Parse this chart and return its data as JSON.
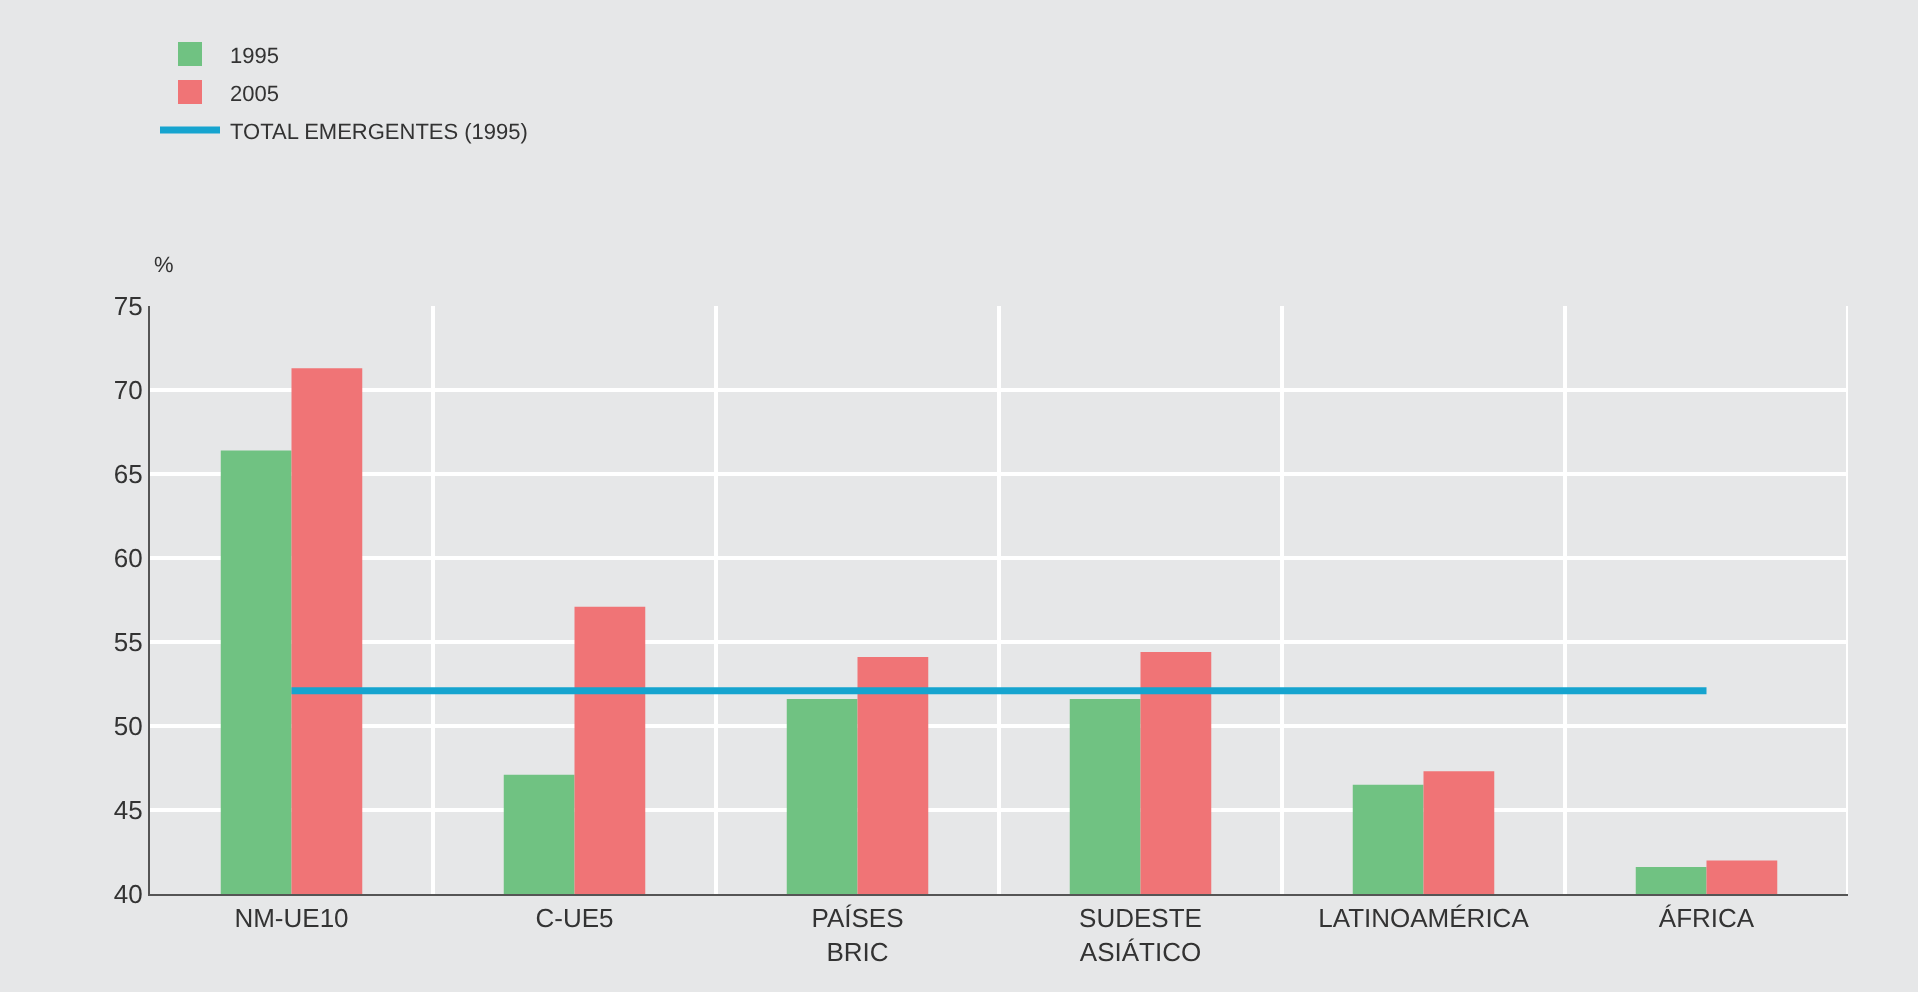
{
  "chart_data": {
    "type": "bar",
    "ylabel": "%",
    "categories": [
      "NM-UE10",
      "C-UE5",
      "PAÍSES\nBRIC",
      "SUDESTE\nASIÁTICO",
      "LATINOAMÉRICA",
      "ÁFRICA"
    ],
    "series": [
      {
        "name": "1995",
        "color": "#70c282",
        "values": [
          66.4,
          47.1,
          51.6,
          51.6,
          46.5,
          41.6
        ]
      },
      {
        "name": "2005",
        "color": "#f07476",
        "values": [
          71.3,
          57.1,
          54.1,
          54.4,
          47.3,
          42.0
        ]
      },
      {
        "name": "TOTAL EMERGENTES (1995)",
        "type": "line",
        "color": "#16a4cf",
        "values": [
          52.1,
          52.1,
          52.1,
          52.1,
          52.1,
          52.1
        ]
      }
    ],
    "ylim": [
      40,
      75
    ],
    "yticks": [
      40,
      45,
      50,
      55,
      60,
      65,
      70,
      75
    ],
    "grid": true,
    "legend": "top left",
    "marker": "none"
  }
}
